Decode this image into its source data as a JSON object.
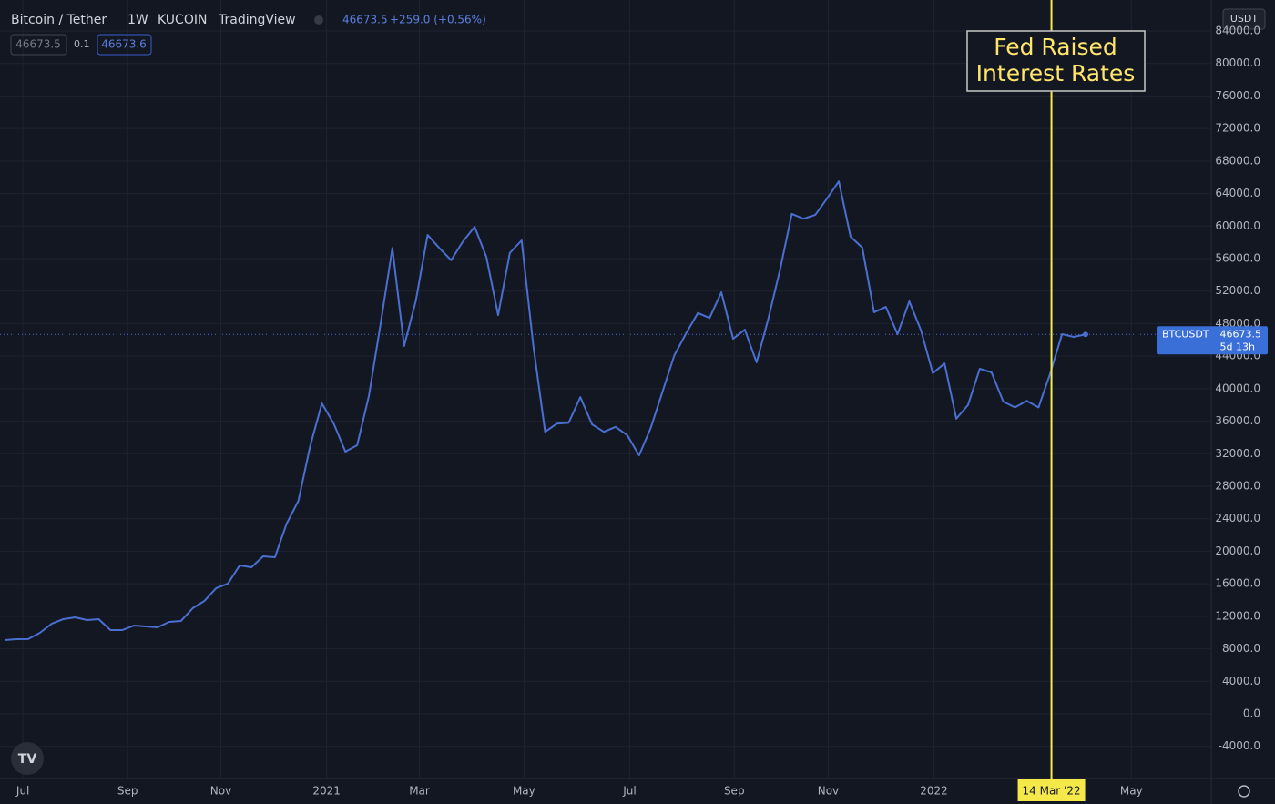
{
  "header": {
    "symbol": "Bitcoin / Tether",
    "interval": "1W",
    "exchange": "KUCOIN",
    "source": "TradingView",
    "change": "+259.0 (+0.56%)",
    "step": "0.1",
    "ask": "46673.6",
    "currency": "USDT"
  },
  "chart_data": {
    "type": "line",
    "series": [
      {
        "name": "BTCUSDT",
        "color": "#4a6fd1",
        "values": [
          9070,
          9180,
          9200,
          9970,
          11090,
          11650,
          11870,
          11540,
          11650,
          10300,
          10300,
          10860,
          10750,
          10640,
          11310,
          11420,
          12990,
          13890,
          15460,
          16020,
          18260,
          18030,
          19380,
          19260,
          23410,
          26210,
          32930,
          38190,
          35730,
          32260,
          33040,
          39100,
          48000,
          57300,
          45250,
          50850,
          58900,
          57300,
          55800,
          58100,
          59900,
          56200,
          49050,
          56700,
          58240,
          45250,
          34700,
          35700,
          35800,
          38960,
          35600,
          34700,
          35300,
          34270,
          31800,
          35200,
          39650,
          44100,
          46800,
          49300,
          48700,
          51850,
          46140,
          47260,
          43230,
          48600,
          54650,
          61500,
          60900,
          61380,
          63400,
          65500,
          58700,
          57340,
          49400,
          50060,
          46700,
          50740,
          47150,
          41900,
          43100,
          36300,
          38000,
          42450,
          42000,
          38400,
          37700,
          38500,
          37700,
          41900,
          46700,
          46370,
          46673.5
        ]
      }
    ],
    "countdown": "5d 13h",
    "xlim": [
      -0.4,
      102.7
    ],
    "xticks": [
      {
        "value": 1.55,
        "label": "Jul"
      },
      {
        "value": 10.47,
        "label": "Sep"
      },
      {
        "value": 18.4,
        "label": "Nov"
      },
      {
        "value": 27.4,
        "label": "2021"
      },
      {
        "value": 35.3,
        "label": "Mar"
      },
      {
        "value": 44.2,
        "label": "May"
      },
      {
        "value": 53.2,
        "label": "Jul"
      },
      {
        "value": 62.1,
        "label": "Sep"
      },
      {
        "value": 70.1,
        "label": "Nov"
      },
      {
        "value": 79.1,
        "label": "2022"
      },
      {
        "value": 95.9,
        "label": "May"
      }
    ],
    "marker": {
      "value": 89.1,
      "label": "14 Mar '22"
    },
    "annotation": [
      "Fed Raised",
      "Interest Rates"
    ],
    "ylim": [
      -7952,
      87808
    ],
    "yticks": [
      {
        "value": -4000,
        "label": "-4000.0"
      },
      {
        "value": 0,
        "label": "0.0"
      },
      {
        "value": 4000,
        "label": "4000.0"
      },
      {
        "value": 8000,
        "label": "8000.0"
      },
      {
        "value": 12000,
        "label": "12000.0"
      },
      {
        "value": 16000,
        "label": "16000.0"
      },
      {
        "value": 20000,
        "label": "20000.0"
      },
      {
        "value": 24000,
        "label": "24000.0"
      },
      {
        "value": 28000,
        "label": "28000.0"
      },
      {
        "value": 32000,
        "label": "32000.0"
      },
      {
        "value": 36000,
        "label": "36000.0"
      },
      {
        "value": 40000,
        "label": "40000.0"
      },
      {
        "value": 44000,
        "label": "44000.0"
      },
      {
        "value": 48000,
        "label": "48000.0"
      },
      {
        "value": 52000,
        "label": "52000.0"
      },
      {
        "value": 56000,
        "label": "56000.0"
      },
      {
        "value": 60000,
        "label": "60000.0"
      },
      {
        "value": 64000,
        "label": "64000.0"
      },
      {
        "value": 68000,
        "label": "68000.0"
      },
      {
        "value": 72000,
        "label": "72000.0"
      },
      {
        "value": 76000,
        "label": "76000.0"
      },
      {
        "value": 80000,
        "label": "80000.0"
      },
      {
        "value": 84000,
        "label": "84000.0"
      }
    ],
    "grid": true
  }
}
